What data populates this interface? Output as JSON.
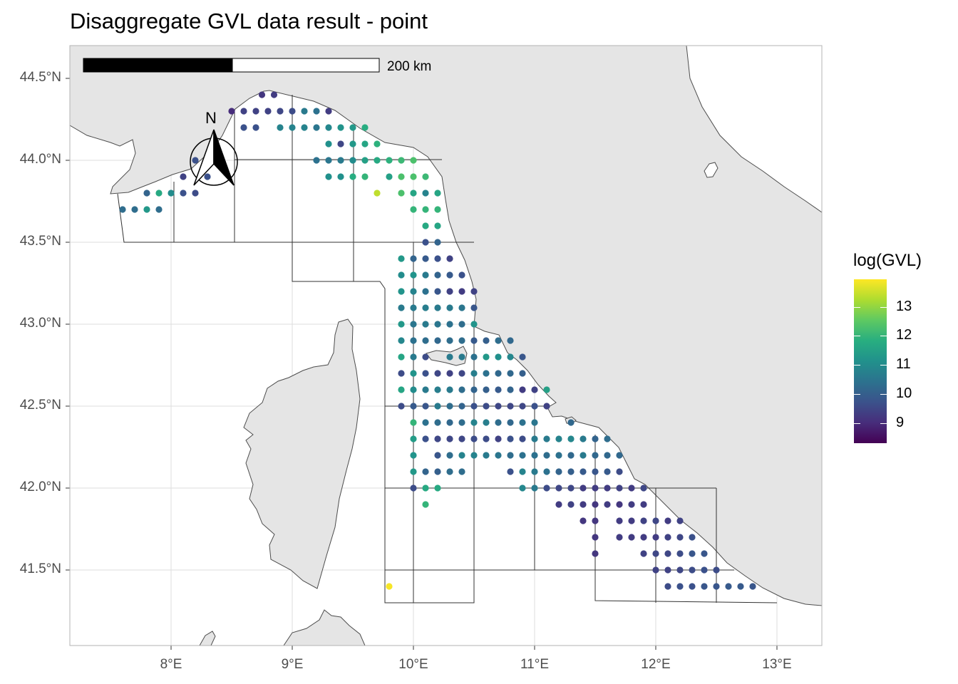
{
  "title": "Disaggregate GVL data result - point",
  "colors": {
    "land": "#e5e5e5",
    "land_border": "#4d4d4d",
    "grid": "#dedede",
    "panel_border": "#b3b3b3",
    "cells": "#333333",
    "viridis": [
      "#440154",
      "#472d7b",
      "#3b528b",
      "#2c728e",
      "#21918c",
      "#28ae80",
      "#5ec962",
      "#addc30",
      "#fde725"
    ]
  },
  "axes": {
    "x_ticks": [
      "8°E",
      "9°E",
      "10°E",
      "11°E",
      "12°E",
      "13°E"
    ],
    "y_ticks": [
      "44.5°N",
      "44.0°N",
      "43.5°N",
      "43.0°N",
      "42.5°N",
      "42.0°N",
      "41.5°N"
    ],
    "x_range": [
      7.1,
      13.35
    ],
    "y_range": [
      41.05,
      44.7
    ]
  },
  "scale_bar": {
    "label": "200 km"
  },
  "north_arrow": {
    "label": "N"
  },
  "legend": {
    "title": "log(GVL)",
    "labels": [
      "13",
      "12",
      "11",
      "10",
      "9"
    ],
    "values": [
      13,
      12,
      11,
      10,
      9
    ],
    "min": 8.3,
    "max": 13.95
  },
  "chart_data": {
    "type": "scatter",
    "title": "Disaggregate GVL data result - point",
    "xlabel": "",
    "ylabel": "",
    "color_scale": "viridis",
    "legend_title": "log(GVL)",
    "grid": true,
    "legend_position": "right",
    "points": [
      [
        8.75,
        44.4,
        9.2
      ],
      [
        8.85,
        44.4,
        9.3
      ],
      [
        8.5,
        44.3,
        9.0
      ],
      [
        8.6,
        44.3,
        9.4
      ],
      [
        8.7,
        44.3,
        9.4
      ],
      [
        8.8,
        44.3,
        9.4
      ],
      [
        8.9,
        44.3,
        9.5
      ],
      [
        9.0,
        44.3,
        9.6
      ],
      [
        9.1,
        44.3,
        10.6
      ],
      [
        9.2,
        44.3,
        10.4
      ],
      [
        9.3,
        44.3,
        9.3
      ],
      [
        8.6,
        44.2,
        9.7
      ],
      [
        8.7,
        44.2,
        9.7
      ],
      [
        8.9,
        44.2,
        10.8
      ],
      [
        9.0,
        44.2,
        10.8
      ],
      [
        9.1,
        44.2,
        10.8
      ],
      [
        9.2,
        44.2,
        10.5
      ],
      [
        9.3,
        44.2,
        10.9
      ],
      [
        9.4,
        44.2,
        11.2
      ],
      [
        9.5,
        44.2,
        11.3
      ],
      [
        9.6,
        44.2,
        11.8
      ],
      [
        9.3,
        44.1,
        11.1
      ],
      [
        9.4,
        44.1,
        9.5
      ],
      [
        9.5,
        44.1,
        11.3
      ],
      [
        9.6,
        44.1,
        11.6
      ],
      [
        9.7,
        44.1,
        11.9
      ],
      [
        9.2,
        44.0,
        10.4
      ],
      [
        9.3,
        44.0,
        10.5
      ],
      [
        9.4,
        44.0,
        10.6
      ],
      [
        9.5,
        44.0,
        11.0
      ],
      [
        9.6,
        44.0,
        11.5
      ],
      [
        9.7,
        44.0,
        11.7
      ],
      [
        9.8,
        44.0,
        11.9
      ],
      [
        9.9,
        44.0,
        12.1
      ],
      [
        10.0,
        44.0,
        12.3
      ],
      [
        8.2,
        44.0,
        9.7
      ],
      [
        8.1,
        43.9,
        9.4
      ],
      [
        8.3,
        43.9,
        9.7
      ],
      [
        9.3,
        43.9,
        11.1
      ],
      [
        9.4,
        43.9,
        11.1
      ],
      [
        9.5,
        43.9,
        11.8
      ],
      [
        9.6,
        43.9,
        12.0
      ],
      [
        9.8,
        43.9,
        11.5
      ],
      [
        9.9,
        43.9,
        12.3
      ],
      [
        10.0,
        43.9,
        12.3
      ],
      [
        10.1,
        43.9,
        12.1
      ],
      [
        7.8,
        43.8,
        10.1
      ],
      [
        7.9,
        43.8,
        11.7
      ],
      [
        8.0,
        43.8,
        11.0
      ],
      [
        8.1,
        43.8,
        9.7
      ],
      [
        8.2,
        43.8,
        9.6
      ],
      [
        9.7,
        43.8,
        13.4
      ],
      [
        9.9,
        43.8,
        12.3
      ],
      [
        10.0,
        43.8,
        11.6
      ],
      [
        10.1,
        43.8,
        10.8
      ],
      [
        10.2,
        43.8,
        11.6
      ],
      [
        7.6,
        43.7,
        10.3
      ],
      [
        7.7,
        43.7,
        10.3
      ],
      [
        7.8,
        43.7,
        11.3
      ],
      [
        7.9,
        43.7,
        10.3
      ],
      [
        10.0,
        43.7,
        12.0
      ],
      [
        10.1,
        43.7,
        12.0
      ],
      [
        10.2,
        43.7,
        12.0
      ],
      [
        10.1,
        43.6,
        11.7
      ],
      [
        10.2,
        43.6,
        11.6
      ],
      [
        10.1,
        43.5,
        9.7
      ],
      [
        10.2,
        43.5,
        10.1
      ],
      [
        9.9,
        43.4,
        11.3
      ],
      [
        10.0,
        43.4,
        10.1
      ],
      [
        10.1,
        43.4,
        9.9
      ],
      [
        10.2,
        43.4,
        9.7
      ],
      [
        10.3,
        43.4,
        9.4
      ],
      [
        9.9,
        43.3,
        11.0
      ],
      [
        10.0,
        43.3,
        11.2
      ],
      [
        10.1,
        43.3,
        10.6
      ],
      [
        10.2,
        43.3,
        10.1
      ],
      [
        10.3,
        43.3,
        9.9
      ],
      [
        10.4,
        43.3,
        9.7
      ],
      [
        9.9,
        43.2,
        11.2
      ],
      [
        10.0,
        43.2,
        10.8
      ],
      [
        10.1,
        43.2,
        10.4
      ],
      [
        10.2,
        43.2,
        9.8
      ],
      [
        10.3,
        43.2,
        9.4
      ],
      [
        10.4,
        43.2,
        9.3
      ],
      [
        10.5,
        43.2,
        9.4
      ],
      [
        9.9,
        43.1,
        10.6
      ],
      [
        10.0,
        43.1,
        10.6
      ],
      [
        10.1,
        43.1,
        10.7
      ],
      [
        10.2,
        43.1,
        10.6
      ],
      [
        10.3,
        43.1,
        10.6
      ],
      [
        10.4,
        43.1,
        10.5
      ],
      [
        10.5,
        43.1,
        9.8
      ],
      [
        9.9,
        43.0,
        11.3
      ],
      [
        10.0,
        43.0,
        10.5
      ],
      [
        10.1,
        43.0,
        10.6
      ],
      [
        10.2,
        43.0,
        10.5
      ],
      [
        10.3,
        43.0,
        10.4
      ],
      [
        10.4,
        43.0,
        10.3
      ],
      [
        10.5,
        43.0,
        11.2
      ],
      [
        9.9,
        42.9,
        10.9
      ],
      [
        10.0,
        42.9,
        10.4
      ],
      [
        10.1,
        42.9,
        10.3
      ],
      [
        10.2,
        42.9,
        10.2
      ],
      [
        10.3,
        42.9,
        10.3
      ],
      [
        10.4,
        42.9,
        10.3
      ],
      [
        10.5,
        42.9,
        9.9
      ],
      [
        10.6,
        42.9,
        10.0
      ],
      [
        10.7,
        42.9,
        10.3
      ],
      [
        10.8,
        42.9,
        10.2
      ],
      [
        9.9,
        42.8,
        11.6
      ],
      [
        10.0,
        42.8,
        10.6
      ],
      [
        10.1,
        42.8,
        9.6
      ],
      [
        10.3,
        42.8,
        10.6
      ],
      [
        10.4,
        42.8,
        10.6
      ],
      [
        10.5,
        42.8,
        10.4
      ],
      [
        10.6,
        42.8,
        11.3
      ],
      [
        10.7,
        42.8,
        11.1
      ],
      [
        10.8,
        42.8,
        10.9
      ],
      [
        10.9,
        42.8,
        9.8
      ],
      [
        9.9,
        42.7,
        9.6
      ],
      [
        10.0,
        42.7,
        11.2
      ],
      [
        10.1,
        42.7,
        9.7
      ],
      [
        10.2,
        42.7,
        9.5
      ],
      [
        10.3,
        42.7,
        9.4
      ],
      [
        10.4,
        42.7,
        9.5
      ],
      [
        10.5,
        42.7,
        10.7
      ],
      [
        10.6,
        42.7,
        10.4
      ],
      [
        10.7,
        42.7,
        10.2
      ],
      [
        10.8,
        42.7,
        10.2
      ],
      [
        10.9,
        42.7,
        10.0
      ],
      [
        9.9,
        42.6,
        11.6
      ],
      [
        10.0,
        42.6,
        11.0
      ],
      [
        10.1,
        42.6,
        10.6
      ],
      [
        10.2,
        42.6,
        10.7
      ],
      [
        10.3,
        42.6,
        10.6
      ],
      [
        10.4,
        42.6,
        10.3
      ],
      [
        10.5,
        42.6,
        10.1
      ],
      [
        10.6,
        42.6,
        10.0
      ],
      [
        10.7,
        42.6,
        9.9
      ],
      [
        10.8,
        42.6,
        10.1
      ],
      [
        10.9,
        42.6,
        9.3
      ],
      [
        11.0,
        42.6,
        9.4
      ],
      [
        11.1,
        42.6,
        11.5
      ],
      [
        9.9,
        42.5,
        9.6
      ],
      [
        10.0,
        42.5,
        9.9
      ],
      [
        10.1,
        42.5,
        9.8
      ],
      [
        10.2,
        42.5,
        10.6
      ],
      [
        10.3,
        42.5,
        10.3
      ],
      [
        10.4,
        42.5,
        10.1
      ],
      [
        10.5,
        42.5,
        9.7
      ],
      [
        10.6,
        42.5,
        9.6
      ],
      [
        10.7,
        42.5,
        9.5
      ],
      [
        10.8,
        42.5,
        9.5
      ],
      [
        10.9,
        42.5,
        9.5
      ],
      [
        11.0,
        42.5,
        9.7
      ],
      [
        11.1,
        42.5,
        9.4
      ],
      [
        10.0,
        42.4,
        12.0
      ],
      [
        10.1,
        42.4,
        10.4
      ],
      [
        10.2,
        42.4,
        10.3
      ],
      [
        10.3,
        42.4,
        10.2
      ],
      [
        10.4,
        42.4,
        10.3
      ],
      [
        10.5,
        42.4,
        10.8
      ],
      [
        10.6,
        42.4,
        10.7
      ],
      [
        10.7,
        42.4,
        10.3
      ],
      [
        10.8,
        42.4,
        10.2
      ],
      [
        10.9,
        42.4,
        10.4
      ],
      [
        11.0,
        42.4,
        10.5
      ],
      [
        11.3,
        42.4,
        10.2
      ],
      [
        10.0,
        42.3,
        11.4
      ],
      [
        10.1,
        42.3,
        9.7
      ],
      [
        10.2,
        42.3,
        9.5
      ],
      [
        10.3,
        42.3,
        9.5
      ],
      [
        10.4,
        42.3,
        9.5
      ],
      [
        10.5,
        42.3,
        9.6
      ],
      [
        10.6,
        42.3,
        9.6
      ],
      [
        10.7,
        42.3,
        9.4
      ],
      [
        10.8,
        42.3,
        9.7
      ],
      [
        10.9,
        42.3,
        9.6
      ],
      [
        11.0,
        42.3,
        10.6
      ],
      [
        11.1,
        42.3,
        10.6
      ],
      [
        11.2,
        42.3,
        10.8
      ],
      [
        11.3,
        42.3,
        10.9
      ],
      [
        11.4,
        42.3,
        10.6
      ],
      [
        11.5,
        42.3,
        10.1
      ],
      [
        11.6,
        42.3,
        10.3
      ],
      [
        10.0,
        42.2,
        11.2
      ],
      [
        10.2,
        42.2,
        9.8
      ],
      [
        10.3,
        42.2,
        10.3
      ],
      [
        10.4,
        42.2,
        10.8
      ],
      [
        10.5,
        42.2,
        10.8
      ],
      [
        10.6,
        42.2,
        10.6
      ],
      [
        10.7,
        42.2,
        10.5
      ],
      [
        10.8,
        42.2,
        10.3
      ],
      [
        10.9,
        42.2,
        10.4
      ],
      [
        11.0,
        42.2,
        10.4
      ],
      [
        11.1,
        42.2,
        10.3
      ],
      [
        11.2,
        42.2,
        10.4
      ],
      [
        11.3,
        42.2,
        10.2
      ],
      [
        11.4,
        42.2,
        10.6
      ],
      [
        11.5,
        42.2,
        10.2
      ],
      [
        11.6,
        42.2,
        10.2
      ],
      [
        11.7,
        42.2,
        10.2
      ],
      [
        10.0,
        42.1,
        11.3
      ],
      [
        10.1,
        42.1,
        10.1
      ],
      [
        10.2,
        42.1,
        10.0
      ],
      [
        10.3,
        42.1,
        10.3
      ],
      [
        10.4,
        42.1,
        10.3
      ],
      [
        10.8,
        42.1,
        9.7
      ],
      [
        10.9,
        42.1,
        10.8
      ],
      [
        11.0,
        42.1,
        10.6
      ],
      [
        11.1,
        42.1,
        10.4
      ],
      [
        11.2,
        42.1,
        10.1
      ],
      [
        11.3,
        42.1,
        10.0
      ],
      [
        11.4,
        42.1,
        9.9
      ],
      [
        11.5,
        42.1,
        9.8
      ],
      [
        11.6,
        42.1,
        9.9
      ],
      [
        11.7,
        42.1,
        9.6
      ],
      [
        10.0,
        42.0,
        9.6
      ],
      [
        10.1,
        42.0,
        11.7
      ],
      [
        10.2,
        42.0,
        11.7
      ],
      [
        10.9,
        42.0,
        10.9
      ],
      [
        11.0,
        42.0,
        10.6
      ],
      [
        11.1,
        42.0,
        9.6
      ],
      [
        11.2,
        42.0,
        9.5
      ],
      [
        11.3,
        42.0,
        9.5
      ],
      [
        11.4,
        42.0,
        9.3
      ],
      [
        11.5,
        42.0,
        9.3
      ],
      [
        11.6,
        42.0,
        9.3
      ],
      [
        11.7,
        42.0,
        9.4
      ],
      [
        11.8,
        42.0,
        9.3
      ],
      [
        11.9,
        42.0,
        9.5
      ],
      [
        10.1,
        41.9,
        12.0
      ],
      [
        11.2,
        41.9,
        9.3
      ],
      [
        11.3,
        41.9,
        9.4
      ],
      [
        11.4,
        41.9,
        9.3
      ],
      [
        11.5,
        41.9,
        9.2
      ],
      [
        11.6,
        41.9,
        9.3
      ],
      [
        11.7,
        41.9,
        9.2
      ],
      [
        11.8,
        41.9,
        9.3
      ],
      [
        11.9,
        41.9,
        9.3
      ],
      [
        11.4,
        41.8,
        9.2
      ],
      [
        11.5,
        41.8,
        9.2
      ],
      [
        11.7,
        41.8,
        9.3
      ],
      [
        11.8,
        41.8,
        9.3
      ],
      [
        11.9,
        41.8,
        9.4
      ],
      [
        12.0,
        41.8,
        9.5
      ],
      [
        12.1,
        41.8,
        9.3
      ],
      [
        12.2,
        41.8,
        9.4
      ],
      [
        11.5,
        41.7,
        9.2
      ],
      [
        11.7,
        41.7,
        9.3
      ],
      [
        11.8,
        41.7,
        9.3
      ],
      [
        11.9,
        41.7,
        9.3
      ],
      [
        12.0,
        41.7,
        9.3
      ],
      [
        12.1,
        41.7,
        9.4
      ],
      [
        12.2,
        41.7,
        9.5
      ],
      [
        12.3,
        41.7,
        9.7
      ],
      [
        11.5,
        41.6,
        9.2
      ],
      [
        11.9,
        41.6,
        9.4
      ],
      [
        12.0,
        41.6,
        9.5
      ],
      [
        12.1,
        41.6,
        9.5
      ],
      [
        12.2,
        41.6,
        9.6
      ],
      [
        12.3,
        41.6,
        9.8
      ],
      [
        12.4,
        41.6,
        9.8
      ],
      [
        12.0,
        41.5,
        9.4
      ],
      [
        12.1,
        41.5,
        9.4
      ],
      [
        12.2,
        41.5,
        9.5
      ],
      [
        12.3,
        41.5,
        9.6
      ],
      [
        12.4,
        41.5,
        9.7
      ],
      [
        12.5,
        41.5,
        9.6
      ],
      [
        9.8,
        41.4,
        13.9
      ],
      [
        12.1,
        41.4,
        9.6
      ],
      [
        12.2,
        41.4,
        9.7
      ],
      [
        12.3,
        41.4,
        9.7
      ],
      [
        12.4,
        41.4,
        9.8
      ],
      [
        12.5,
        41.4,
        9.8
      ],
      [
        12.6,
        41.4,
        9.9
      ],
      [
        12.7,
        41.4,
        9.9
      ],
      [
        12.8,
        41.4,
        9.8
      ]
    ]
  }
}
